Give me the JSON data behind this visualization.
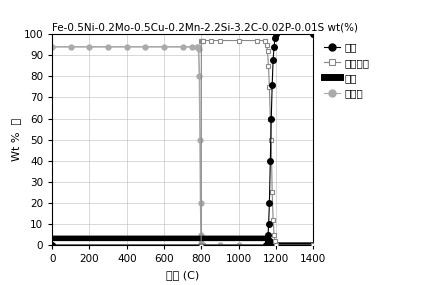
{
  "title": "Fe-0.5Ni-0.2Mo-0.5Cu-0.2Mn-2.2Si-3.2C-0.02P-0.01S wt(%)",
  "xlabel": "温度 (C)",
  "ylabel": "Wt %  相",
  "xlim": [
    0,
    1400
  ],
  "ylim": [
    0,
    100
  ],
  "xticks": [
    0,
    200,
    400,
    600,
    800,
    1000,
    1200,
    1400
  ],
  "yticks": [
    0,
    10,
    20,
    30,
    40,
    50,
    60,
    70,
    80,
    90,
    100
  ],
  "legend_labels": [
    "液相",
    "奥氏体相",
    "石墨",
    "铁素体"
  ],
  "background_color": "#ffffff",
  "grid_color": "#bbbbbb",
  "liquid_x": [
    0,
    1148,
    1150,
    1152,
    1155,
    1158,
    1161,
    1165,
    1170,
    1175,
    1180,
    1185,
    1190,
    1195,
    1200,
    1400
  ],
  "liquid_y": [
    0,
    0,
    0,
    0,
    2,
    5,
    10,
    20,
    40,
    60,
    76,
    88,
    94,
    98,
    100,
    100
  ],
  "austenite_x": [
    0,
    799,
    800,
    802,
    805,
    810,
    850,
    900,
    1000,
    1100,
    1140,
    1150,
    1155,
    1160,
    1165,
    1170,
    1175,
    1180,
    1185,
    1190,
    1195,
    1200,
    1400
  ],
  "austenite_y": [
    0,
    0,
    97,
    97,
    97,
    97,
    97,
    97,
    97,
    97,
    97,
    95,
    92,
    85,
    75,
    60,
    50,
    25,
    12,
    5,
    2,
    0,
    0
  ],
  "graphite_x": [
    0,
    100,
    200,
    300,
    400,
    500,
    600,
    700,
    750,
    780,
    790,
    795,
    800,
    900,
    1000,
    1100,
    1140,
    1150,
    1155,
    1160,
    1165,
    1170,
    1200,
    1400
  ],
  "graphite_y": [
    3.2,
    3.2,
    3.2,
    3.2,
    3.2,
    3.2,
    3.2,
    3.2,
    3.2,
    3.2,
    3.2,
    3.2,
    3.2,
    3.2,
    3.2,
    3.2,
    3.2,
    3.2,
    3.2,
    3.0,
    2.5,
    2.0,
    0,
    0
  ],
  "ferrite_x": [
    0,
    100,
    200,
    300,
    400,
    500,
    600,
    700,
    750,
    775,
    780,
    785,
    790,
    793,
    796,
    799,
    800,
    810,
    900,
    1000,
    1200,
    1400
  ],
  "ferrite_y": [
    94,
    94,
    94,
    94,
    94,
    94,
    94,
    94,
    94,
    94,
    94,
    93,
    80,
    50,
    20,
    5,
    1,
    0,
    0,
    0,
    0,
    0
  ]
}
